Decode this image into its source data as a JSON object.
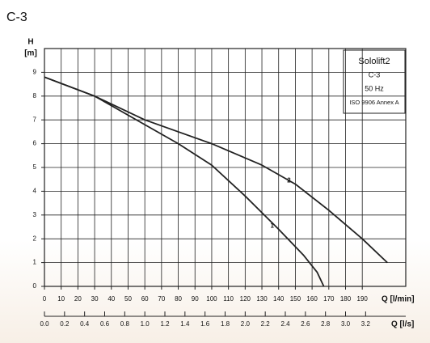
{
  "chart_data": {
    "type": "line",
    "title": "C-3",
    "y_label": "H",
    "y_unit": "[m]",
    "x_label": "Q [l/min]",
    "x2_label": "Q [l/s]",
    "xlim": [
      0,
      216
    ],
    "ylim": [
      0,
      10
    ],
    "xticks": [
      0,
      10,
      20,
      30,
      40,
      50,
      60,
      70,
      80,
      90,
      100,
      110,
      120,
      130,
      140,
      150,
      160,
      170,
      180,
      190
    ],
    "yticks": [
      0,
      1,
      2,
      3,
      4,
      5,
      6,
      7,
      8,
      9
    ],
    "x2lim": [
      0,
      3.6
    ],
    "x2ticks": [
      {
        "value": 0,
        "label": "0.0"
      },
      {
        "value": 0.2,
        "label": "0.2"
      },
      {
        "value": 0.4,
        "label": "0.4"
      },
      {
        "value": 0.6,
        "label": "0.6"
      },
      {
        "value": 0.8,
        "label": "0.8"
      },
      {
        "value": 1,
        "label": "1.0"
      },
      {
        "value": 1.2,
        "label": "1.2"
      },
      {
        "value": 1.4,
        "label": "1.4"
      },
      {
        "value": 1.6,
        "label": "1.6"
      },
      {
        "value": 1.8,
        "label": "1.8"
      },
      {
        "value": 2,
        "label": "2.0"
      },
      {
        "value": 2.2,
        "label": "2.2"
      },
      {
        "value": 2.4,
        "label": "2.4"
      },
      {
        "value": 2.6,
        "label": "2.6"
      },
      {
        "value": 2.8,
        "label": "2.8"
      },
      {
        "value": 3,
        "label": "3.0"
      },
      {
        "value": 3.2,
        "label": "3.2"
      }
    ],
    "grid": true,
    "series": [
      {
        "name": "1",
        "color": "#222222",
        "x": [
          0,
          30,
          60,
          80,
          100,
          120,
          140,
          155,
          163,
          167
        ],
        "values": [
          8.8,
          8.0,
          6.8,
          6.0,
          5.1,
          3.8,
          2.4,
          1.3,
          0.6,
          0
        ]
      },
      {
        "name": "2",
        "color": "#222222",
        "x": [
          0,
          30,
          60,
          100,
          130,
          150,
          170,
          190,
          205
        ],
        "values": [
          8.8,
          8.0,
          7.0,
          6.0,
          5.1,
          4.3,
          3.2,
          2.0,
          1.0
        ]
      }
    ],
    "info_box": [
      "Sololift2",
      "C-3",
      "50 Hz",
      "ISO 9906 Annex A"
    ]
  }
}
